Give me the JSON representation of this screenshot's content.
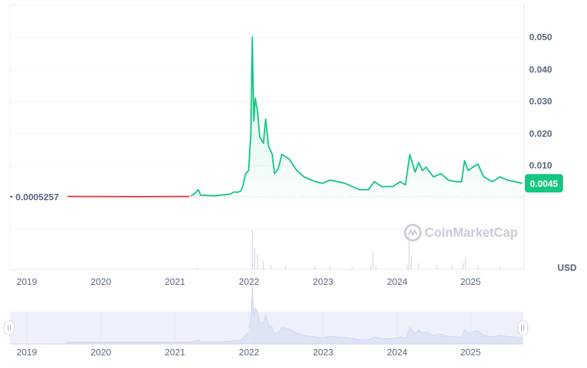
{
  "chart_data": {
    "type": "area",
    "y_ticks": [
      "0.010",
      "0.020",
      "0.030",
      "0.040",
      "0.050"
    ],
    "ylim": [
      0,
      0.055
    ],
    "x_ticks": [
      "2019",
      "2020",
      "2021",
      "2022",
      "2023",
      "2024",
      "2025"
    ],
    "unit": "USD",
    "reference_line_label": "0.0005257",
    "reference_value": 0.0005257,
    "current_price_label": "0.0045",
    "watermark": "CoinMarketCap",
    "colors": {
      "up": "#16c784",
      "down": "#ea3943",
      "badge": "#16c784",
      "navigator_fill": "#eef1fb"
    },
    "series": [
      {
        "values": [
          [
            2019.55,
            0.00052
          ],
          [
            2019.75,
            0.0005
          ],
          [
            2020.0,
            0.00048
          ],
          [
            2020.5,
            0.00045
          ],
          [
            2021.0,
            0.00048
          ],
          [
            2021.2,
            0.0005
          ]
        ]
      },
      {
        "values": [
          [
            2021.22,
            0.00052
          ],
          [
            2021.28,
            0.0015
          ],
          [
            2021.32,
            0.0025
          ],
          [
            2021.35,
            0.0008
          ],
          [
            2021.45,
            0.0007
          ],
          [
            2021.55,
            0.0006
          ],
          [
            2021.65,
            0.0009
          ],
          [
            2021.75,
            0.0011
          ],
          [
            2021.8,
            0.0018
          ],
          [
            2021.85,
            0.0017
          ],
          [
            2021.9,
            0.0022
          ],
          [
            2021.93,
            0.0045
          ],
          [
            2021.96,
            0.0075
          ],
          [
            2022.0,
            0.0085
          ],
          [
            2022.03,
            0.02
          ],
          [
            2022.05,
            0.05
          ],
          [
            2022.07,
            0.024
          ],
          [
            2022.09,
            0.031
          ],
          [
            2022.12,
            0.027
          ],
          [
            2022.15,
            0.019
          ],
          [
            2022.2,
            0.017
          ],
          [
            2022.23,
            0.0245
          ],
          [
            2022.27,
            0.016
          ],
          [
            2022.32,
            0.0135
          ],
          [
            2022.35,
            0.0075
          ],
          [
            2022.4,
            0.009
          ],
          [
            2022.45,
            0.0135
          ],
          [
            2022.55,
            0.012
          ],
          [
            2022.65,
            0.0085
          ],
          [
            2022.75,
            0.0065
          ],
          [
            2022.9,
            0.005
          ],
          [
            2023.0,
            0.0045
          ],
          [
            2023.1,
            0.0055
          ],
          [
            2023.3,
            0.0045
          ],
          [
            2023.5,
            0.0025
          ],
          [
            2023.62,
            0.0025
          ],
          [
            2023.7,
            0.005
          ],
          [
            2023.8,
            0.0035
          ],
          [
            2023.95,
            0.0035
          ],
          [
            2024.05,
            0.005
          ],
          [
            2024.12,
            0.004
          ],
          [
            2024.18,
            0.0135
          ],
          [
            2024.25,
            0.008
          ],
          [
            2024.3,
            0.011
          ],
          [
            2024.35,
            0.0085
          ],
          [
            2024.4,
            0.0095
          ],
          [
            2024.5,
            0.0065
          ],
          [
            2024.6,
            0.0075
          ],
          [
            2024.7,
            0.0055
          ],
          [
            2024.8,
            0.005
          ],
          [
            2024.88,
            0.005
          ],
          [
            2024.92,
            0.0115
          ],
          [
            2024.97,
            0.0085
          ],
          [
            2025.03,
            0.0095
          ],
          [
            2025.1,
            0.0105
          ],
          [
            2025.18,
            0.0065
          ],
          [
            2025.3,
            0.005
          ],
          [
            2025.4,
            0.0065
          ],
          [
            2025.5,
            0.0055
          ],
          [
            2025.6,
            0.005
          ],
          [
            2025.7,
            0.0045
          ]
        ]
      }
    ],
    "volume_spikes": [
      [
        2021.3,
        0.05
      ],
      [
        2022.05,
        1.0
      ],
      [
        2022.08,
        0.55
      ],
      [
        2022.12,
        0.4
      ],
      [
        2022.2,
        0.2
      ],
      [
        2022.3,
        0.12
      ],
      [
        2022.5,
        0.1
      ],
      [
        2022.9,
        0.08
      ],
      [
        2023.1,
        0.07
      ],
      [
        2023.4,
        0.05
      ],
      [
        2023.65,
        0.08
      ],
      [
        2023.68,
        0.45
      ],
      [
        2023.72,
        0.1
      ],
      [
        2024.15,
        0.1
      ],
      [
        2024.17,
        0.95
      ],
      [
        2024.2,
        0.35
      ],
      [
        2024.3,
        0.15
      ],
      [
        2024.55,
        0.12
      ],
      [
        2024.75,
        0.1
      ],
      [
        2024.9,
        0.15
      ],
      [
        2024.93,
        0.28
      ],
      [
        2025.1,
        0.08
      ],
      [
        2025.4,
        0.06
      ]
    ]
  }
}
